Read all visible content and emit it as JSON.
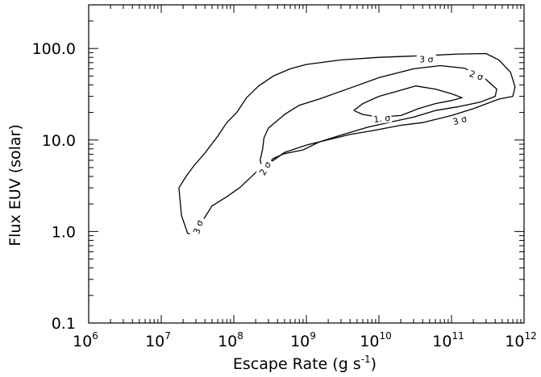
{
  "chart_data": {
    "type": "contour",
    "title": "",
    "xlabel": "Escape Rate (g s",
    "xlabel_sup": "-1",
    "xlabel_close": ")",
    "ylabel": "Flux EUV (solar)",
    "x_scale": "log",
    "y_scale": "log",
    "xlim": [
      1000000.0,
      1000000000000.0
    ],
    "ylim": [
      0.1,
      300
    ],
    "x_ticks": [
      {
        "value": 1000000.0,
        "base": "10",
        "exp": "6"
      },
      {
        "value": 10000000.0,
        "base": "10",
        "exp": "7"
      },
      {
        "value": 100000000.0,
        "base": "10",
        "exp": "8"
      },
      {
        "value": 1000000000.0,
        "base": "10",
        "exp": "9"
      },
      {
        "value": 10000000000.0,
        "base": "10",
        "exp": "10"
      },
      {
        "value": 100000000000.0,
        "base": "10",
        "exp": "11"
      },
      {
        "value": 1000000000000.0,
        "base": "10",
        "exp": "12"
      }
    ],
    "y_ticks": [
      {
        "value": 0.1,
        "label": "0.1"
      },
      {
        "value": 1.0,
        "label": "1.0"
      },
      {
        "value": 10.0,
        "label": "10.0"
      },
      {
        "value": 100.0,
        "label": "100.0"
      }
    ],
    "grid": false,
    "legend": "none",
    "contours": [
      {
        "label": "3 σ",
        "label_positions": [
          {
            "x": 45000000000.0,
            "y": 76,
            "angle": 0
          },
          {
            "x": 130000000000.0,
            "y": 16.5,
            "angle": -15
          },
          {
            "x": 32000000.0,
            "y": 1.12,
            "angle": -72
          }
        ],
        "points": [
          [
            33000000.0,
            0.9
          ],
          [
            27000000.0,
            0.92
          ],
          [
            23000000.0,
            0.96
          ],
          [
            19000000.0,
            1.5
          ],
          [
            17500000.0,
            3.0
          ],
          [
            22000000.0,
            4.0
          ],
          [
            28000000.0,
            5.2
          ],
          [
            40000000.0,
            7.2
          ],
          [
            60000000.0,
            11
          ],
          [
            80000000.0,
            15.5
          ],
          [
            110000000.0,
            20
          ],
          [
            150000000.0,
            29
          ],
          [
            220000000.0,
            39
          ],
          [
            350000000.0,
            50
          ],
          [
            600000000.0,
            60
          ],
          [
            1000000000.0,
            67
          ],
          [
            3000000000.0,
            75
          ],
          [
            10000000000.0,
            80
          ],
          [
            50000000000.0,
            84
          ],
          [
            120000000000.0,
            87
          ],
          [
            300000000000.0,
            88
          ],
          [
            450000000000.0,
            75
          ],
          [
            650000000000.0,
            55
          ],
          [
            750000000000.0,
            38
          ],
          [
            700000000000.0,
            30
          ],
          [
            450000000000.0,
            28
          ],
          [
            200000000000.0,
            22
          ],
          [
            100000000000.0,
            18.5
          ],
          [
            40000000000.0,
            15.5
          ],
          [
            20000000000.0,
            14.5
          ],
          [
            8000000000.0,
            12.6
          ],
          [
            4000000000.0,
            11.5
          ],
          [
            1000000000.0,
            8.8
          ],
          [
            500000000.0,
            7.3
          ],
          [
            300000000.0,
            5.5
          ],
          [
            200000000.0,
            4.4
          ],
          [
            120000000.0,
            3.0
          ],
          [
            80000000.0,
            2.4
          ],
          [
            50000000.0,
            1.9
          ],
          [
            38000000.0,
            1.35
          ],
          [
            33000000.0,
            0.9
          ]
        ]
      },
      {
        "label": "2 σ",
        "label_positions": [
          {
            "x": 220000000000.0,
            "y": 51,
            "angle": 18
          },
          {
            "x": 270000000.0,
            "y": 4.9,
            "angle": -60
          }
        ],
        "points": [
          [
            250000000.0,
            4.8
          ],
          [
            230000000.0,
            6.0
          ],
          [
            250000000.0,
            8.0
          ],
          [
            260000000.0,
            10.5
          ],
          [
            300000000.0,
            13.5
          ],
          [
            500000000.0,
            19
          ],
          [
            800000000.0,
            24
          ],
          [
            1500000000.0,
            28
          ],
          [
            4000000000.0,
            37
          ],
          [
            10000000000.0,
            48
          ],
          [
            30000000000.0,
            60
          ],
          [
            70000000000.0,
            65
          ],
          [
            150000000000.0,
            61
          ],
          [
            280000000000.0,
            48
          ],
          [
            420000000000.0,
            36
          ],
          [
            400000000000.0,
            30
          ],
          [
            250000000000.0,
            26
          ],
          [
            120000000000.0,
            23
          ],
          [
            60000000000.0,
            21
          ],
          [
            30000000000.0,
            17.8
          ],
          [
            15000000000.0,
            15.8
          ],
          [
            7000000000.0,
            13.8
          ],
          [
            3000000000.0,
            11.3
          ],
          [
            1500000000.0,
            9.5
          ],
          [
            900000000.0,
            7.8
          ],
          [
            500000000.0,
            7.1
          ],
          [
            350000000.0,
            6.3
          ],
          [
            300000000.0,
            5.5
          ],
          [
            250000000.0,
            4.8
          ]
        ]
      },
      {
        "label": "1. σ",
        "label_positions": [
          {
            "x": 11000000000.0,
            "y": 17.2,
            "angle": -6
          }
        ],
        "points": [
          [
            4500000000.0,
            21
          ],
          [
            6000000000.0,
            25
          ],
          [
            10000000000.0,
            30
          ],
          [
            20000000000.0,
            35
          ],
          [
            32000000000.0,
            39
          ],
          [
            60000000000.0,
            36
          ],
          [
            100000000000.0,
            32
          ],
          [
            140000000000.0,
            29
          ],
          [
            100000000000.0,
            27
          ],
          [
            60000000000.0,
            25
          ],
          [
            35000000000.0,
            22
          ],
          [
            20000000000.0,
            18.5
          ],
          [
            10000000000.0,
            17.8
          ],
          [
            6000000000.0,
            19
          ],
          [
            4500000000.0,
            21
          ]
        ]
      }
    ]
  }
}
